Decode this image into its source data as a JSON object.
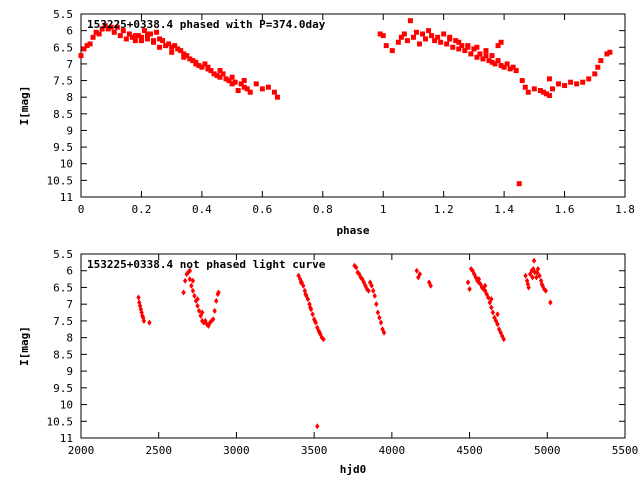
{
  "chart_data": [
    {
      "type": "scatter",
      "title": "153225+0338.4 phased with P=374.0day",
      "xlabel": "phase",
      "ylabel": "I[mag]",
      "xlim": [
        0,
        1.8
      ],
      "ylim": [
        5.5,
        11
      ],
      "y_inverted": true,
      "x_ticks": [
        0,
        0.2,
        0.4,
        0.6,
        0.8,
        1,
        1.2,
        1.4,
        1.6,
        1.8
      ],
      "x_tick_labels": [
        "0",
        "0.2",
        "0.4",
        "0.6",
        "0.8",
        "1",
        "1.2",
        "1.4",
        "1.6",
        "1.8"
      ],
      "y_ticks": [
        5.5,
        6,
        6.5,
        7,
        7.5,
        8,
        8.5,
        9,
        9.5,
        10,
        10.5,
        11
      ],
      "y_tick_labels": [
        "5.5",
        "6",
        "6.5",
        "7",
        "7.5",
        "8",
        "8.5",
        "9",
        "9.5",
        "10",
        "10.5",
        "11"
      ],
      "marker": "filled-square",
      "color": "#ff0000",
      "points": [
        [
          0.0,
          6.75
        ],
        [
          0.01,
          6.55
        ],
        [
          0.02,
          6.45
        ],
        [
          0.03,
          6.4
        ],
        [
          0.04,
          6.2
        ],
        [
          0.05,
          6.05
        ],
        [
          0.06,
          6.1
        ],
        [
          0.07,
          5.95
        ],
        [
          0.08,
          5.85
        ],
        [
          0.09,
          5.95
        ],
        [
          0.1,
          5.9
        ],
        [
          0.11,
          6.05
        ],
        [
          0.12,
          5.9
        ],
        [
          0.13,
          6.15
        ],
        [
          0.14,
          6.0
        ],
        [
          0.15,
          6.25
        ],
        [
          0.16,
          6.1
        ],
        [
          0.17,
          6.2
        ],
        [
          0.18,
          6.3
        ],
        [
          0.19,
          6.15
        ],
        [
          0.2,
          6.3
        ],
        [
          0.21,
          6.0
        ],
        [
          0.22,
          6.1
        ],
        [
          0.23,
          6.1
        ],
        [
          0.24,
          6.3
        ],
        [
          0.25,
          6.05
        ],
        [
          0.26,
          6.25
        ],
        [
          0.27,
          6.3
        ],
        [
          0.28,
          6.45
        ],
        [
          0.29,
          6.4
        ],
        [
          0.3,
          6.5
        ],
        [
          0.31,
          6.45
        ],
        [
          0.32,
          6.55
        ],
        [
          0.33,
          6.6
        ],
        [
          0.34,
          6.7
        ],
        [
          0.35,
          6.75
        ],
        [
          0.36,
          6.85
        ],
        [
          0.37,
          6.9
        ],
        [
          0.38,
          7.0
        ],
        [
          0.39,
          7.05
        ],
        [
          0.4,
          7.1
        ],
        [
          0.41,
          7.0
        ],
        [
          0.42,
          7.15
        ],
        [
          0.43,
          7.2
        ],
        [
          0.44,
          7.3
        ],
        [
          0.45,
          7.35
        ],
        [
          0.46,
          7.4
        ],
        [
          0.47,
          7.3
        ],
        [
          0.48,
          7.45
        ],
        [
          0.49,
          7.5
        ],
        [
          0.5,
          7.6
        ],
        [
          0.51,
          7.55
        ],
        [
          0.52,
          7.8
        ],
        [
          0.53,
          7.6
        ],
        [
          0.54,
          7.7
        ],
        [
          0.55,
          7.75
        ],
        [
          0.56,
          7.85
        ],
        [
          0.58,
          7.6
        ],
        [
          0.6,
          7.75
        ],
        [
          0.62,
          7.7
        ],
        [
          0.64,
          7.85
        ],
        [
          0.65,
          8.0
        ],
        [
          0.18,
          6.15
        ],
        [
          0.2,
          6.2
        ],
        [
          0.22,
          6.25
        ],
        [
          0.24,
          6.35
        ],
        [
          0.26,
          6.5
        ],
        [
          0.3,
          6.65
        ],
        [
          0.34,
          6.8
        ],
        [
          0.38,
          6.95
        ],
        [
          0.42,
          7.1
        ],
        [
          0.46,
          7.2
        ],
        [
          0.5,
          7.4
        ],
        [
          0.54,
          7.5
        ],
        [
          0.99,
          6.1
        ],
        [
          1.0,
          6.15
        ],
        [
          1.01,
          6.45
        ],
        [
          1.03,
          6.6
        ],
        [
          1.05,
          6.35
        ],
        [
          1.06,
          6.2
        ],
        [
          1.07,
          6.1
        ],
        [
          1.08,
          6.3
        ],
        [
          1.09,
          5.7
        ],
        [
          1.1,
          6.2
        ],
        [
          1.11,
          6.05
        ],
        [
          1.12,
          6.4
        ],
        [
          1.13,
          6.1
        ],
        [
          1.14,
          6.25
        ],
        [
          1.15,
          6.0
        ],
        [
          1.16,
          6.15
        ],
        [
          1.17,
          6.3
        ],
        [
          1.18,
          6.2
        ],
        [
          1.19,
          6.35
        ],
        [
          1.2,
          6.1
        ],
        [
          1.21,
          6.4
        ],
        [
          1.22,
          6.25
        ],
        [
          1.23,
          6.5
        ],
        [
          1.24,
          6.3
        ],
        [
          1.25,
          6.55
        ],
        [
          1.26,
          6.45
        ],
        [
          1.27,
          6.6
        ],
        [
          1.28,
          6.5
        ],
        [
          1.29,
          6.7
        ],
        [
          1.3,
          6.55
        ],
        [
          1.31,
          6.8
        ],
        [
          1.32,
          6.7
        ],
        [
          1.33,
          6.85
        ],
        [
          1.34,
          6.75
        ],
        [
          1.35,
          6.9
        ],
        [
          1.36,
          6.95
        ],
        [
          1.37,
          7.0
        ],
        [
          1.38,
          6.9
        ],
        [
          1.39,
          7.05
        ],
        [
          1.4,
          7.1
        ],
        [
          1.41,
          7.0
        ],
        [
          1.42,
          7.15
        ],
        [
          1.43,
          7.1
        ],
        [
          1.44,
          7.2
        ],
        [
          1.46,
          7.5
        ],
        [
          1.47,
          7.7
        ],
        [
          1.48,
          7.85
        ],
        [
          1.5,
          7.75
        ],
        [
          1.52,
          7.8
        ],
        [
          1.53,
          7.85
        ],
        [
          1.54,
          7.9
        ],
        [
          1.55,
          7.95
        ],
        [
          1.55,
          7.45
        ],
        [
          1.56,
          7.75
        ],
        [
          1.58,
          7.6
        ],
        [
          1.6,
          7.65
        ],
        [
          1.62,
          7.55
        ],
        [
          1.64,
          7.6
        ],
        [
          1.66,
          7.55
        ],
        [
          1.68,
          7.45
        ],
        [
          1.7,
          7.3
        ],
        [
          1.71,
          7.1
        ],
        [
          1.72,
          6.9
        ],
        [
          1.74,
          6.7
        ],
        [
          1.75,
          6.65
        ],
        [
          1.22,
          6.2
        ],
        [
          1.25,
          6.35
        ],
        [
          1.28,
          6.45
        ],
        [
          1.31,
          6.5
        ],
        [
          1.34,
          6.6
        ],
        [
          1.36,
          6.75
        ],
        [
          1.38,
          6.45
        ],
        [
          1.39,
          6.35
        ],
        [
          1.45,
          10.6
        ]
      ]
    },
    {
      "type": "scatter",
      "title": "153225+0338.4 not phased light curve",
      "xlabel": "hjd0",
      "ylabel": "I[mag]",
      "xlim": [
        2000,
        5500
      ],
      "ylim": [
        5.5,
        11
      ],
      "y_inverted": true,
      "x_ticks": [
        2000,
        2500,
        3000,
        3500,
        4000,
        4500,
        5000,
        5500
      ],
      "x_tick_labels": [
        "2000",
        "2500",
        "3000",
        "3500",
        "4000",
        "4500",
        "5000",
        "5500"
      ],
      "y_ticks": [
        5.5,
        6,
        6.5,
        7,
        7.5,
        8,
        8.5,
        9,
        9.5,
        10,
        10.5,
        11
      ],
      "y_tick_labels": [
        "5.5",
        "6",
        "6.5",
        "7",
        "7.5",
        "8",
        "8.5",
        "9",
        "9.5",
        "10",
        "10.5",
        "11"
      ],
      "marker": "filled-diamond",
      "color": "#ff0000",
      "points": [
        [
          2370,
          6.8
        ],
        [
          2375,
          6.95
        ],
        [
          2380,
          7.05
        ],
        [
          2385,
          7.15
        ],
        [
          2390,
          7.25
        ],
        [
          2395,
          7.35
        ],
        [
          2400,
          7.4
        ],
        [
          2405,
          7.5
        ],
        [
          2440,
          7.55
        ],
        [
          2660,
          6.65
        ],
        [
          2670,
          6.3
        ],
        [
          2680,
          6.1
        ],
        [
          2690,
          6.05
        ],
        [
          2700,
          6.25
        ],
        [
          2710,
          6.45
        ],
        [
          2720,
          6.6
        ],
        [
          2730,
          6.75
        ],
        [
          2740,
          6.9
        ],
        [
          2750,
          7.05
        ],
        [
          2760,
          7.2
        ],
        [
          2770,
          7.35
        ],
        [
          2780,
          7.5
        ],
        [
          2790,
          7.55
        ],
        [
          2800,
          7.5
        ],
        [
          2810,
          7.6
        ],
        [
          2820,
          7.65
        ],
        [
          2830,
          7.55
        ],
        [
          2840,
          7.5
        ],
        [
          2850,
          7.45
        ],
        [
          2860,
          7.2
        ],
        [
          2870,
          6.9
        ],
        [
          2880,
          6.7
        ],
        [
          2885,
          6.65
        ],
        [
          2700,
          6.0
        ],
        [
          2720,
          6.3
        ],
        [
          2750,
          6.85
        ],
        [
          2780,
          7.25
        ],
        [
          3400,
          6.15
        ],
        [
          3410,
          6.25
        ],
        [
          3420,
          6.35
        ],
        [
          3430,
          6.45
        ],
        [
          3440,
          6.6
        ],
        [
          3450,
          6.75
        ],
        [
          3460,
          6.85
        ],
        [
          3470,
          7.0
        ],
        [
          3480,
          7.15
        ],
        [
          3490,
          7.3
        ],
        [
          3500,
          7.45
        ],
        [
          3510,
          7.55
        ],
        [
          3520,
          7.7
        ],
        [
          3530,
          7.8
        ],
        [
          3540,
          7.9
        ],
        [
          3550,
          8.0
        ],
        [
          3560,
          8.05
        ],
        [
          3415,
          6.35
        ],
        [
          3445,
          6.7
        ],
        [
          3475,
          7.1
        ],
        [
          3505,
          7.5
        ],
        [
          3535,
          7.85
        ],
        [
          3520,
          10.65
        ],
        [
          3760,
          5.85
        ],
        [
          3770,
          5.9
        ],
        [
          3780,
          6.05
        ],
        [
          3790,
          6.1
        ],
        [
          3800,
          6.2
        ],
        [
          3810,
          6.25
        ],
        [
          3820,
          6.35
        ],
        [
          3830,
          6.45
        ],
        [
          3840,
          6.55
        ],
        [
          3850,
          6.6
        ],
        [
          3860,
          6.35
        ],
        [
          3870,
          6.45
        ],
        [
          3880,
          6.6
        ],
        [
          3890,
          6.75
        ],
        [
          3900,
          7.0
        ],
        [
          3910,
          7.25
        ],
        [
          3920,
          7.4
        ],
        [
          3930,
          7.55
        ],
        [
          3940,
          7.75
        ],
        [
          3950,
          7.85
        ],
        [
          4160,
          6.0
        ],
        [
          4170,
          6.2
        ],
        [
          4180,
          6.1
        ],
        [
          4240,
          6.35
        ],
        [
          4250,
          6.45
        ],
        [
          4490,
          6.35
        ],
        [
          4500,
          6.55
        ],
        [
          4510,
          5.95
        ],
        [
          4520,
          6.0
        ],
        [
          4530,
          6.1
        ],
        [
          4540,
          6.2
        ],
        [
          4550,
          6.3
        ],
        [
          4560,
          6.35
        ],
        [
          4570,
          6.4
        ],
        [
          4580,
          6.5
        ],
        [
          4590,
          6.55
        ],
        [
          4600,
          6.6
        ],
        [
          4610,
          6.7
        ],
        [
          4620,
          6.8
        ],
        [
          4630,
          6.95
        ],
        [
          4640,
          7.1
        ],
        [
          4650,
          7.25
        ],
        [
          4660,
          7.4
        ],
        [
          4670,
          7.5
        ],
        [
          4680,
          7.6
        ],
        [
          4690,
          7.75
        ],
        [
          4700,
          7.85
        ],
        [
          4710,
          7.95
        ],
        [
          4720,
          8.05
        ],
        [
          4560,
          6.25
        ],
        [
          4600,
          6.45
        ],
        [
          4640,
          6.85
        ],
        [
          4680,
          7.3
        ],
        [
          4860,
          6.15
        ],
        [
          4870,
          6.3
        ],
        [
          4880,
          6.5
        ],
        [
          4890,
          6.1
        ],
        [
          4900,
          6.0
        ],
        [
          4910,
          5.95
        ],
        [
          4915,
          5.7
        ],
        [
          4920,
          6.05
        ],
        [
          4930,
          6.2
        ],
        [
          4940,
          5.95
        ],
        [
          4950,
          6.15
        ],
        [
          4960,
          6.3
        ],
        [
          4970,
          6.45
        ],
        [
          4980,
          6.55
        ],
        [
          4990,
          6.6
        ],
        [
          5020,
          6.95
        ],
        [
          4875,
          6.4
        ],
        [
          4905,
          6.2
        ],
        [
          4935,
          6.05
        ],
        [
          4965,
          6.4
        ]
      ]
    }
  ]
}
